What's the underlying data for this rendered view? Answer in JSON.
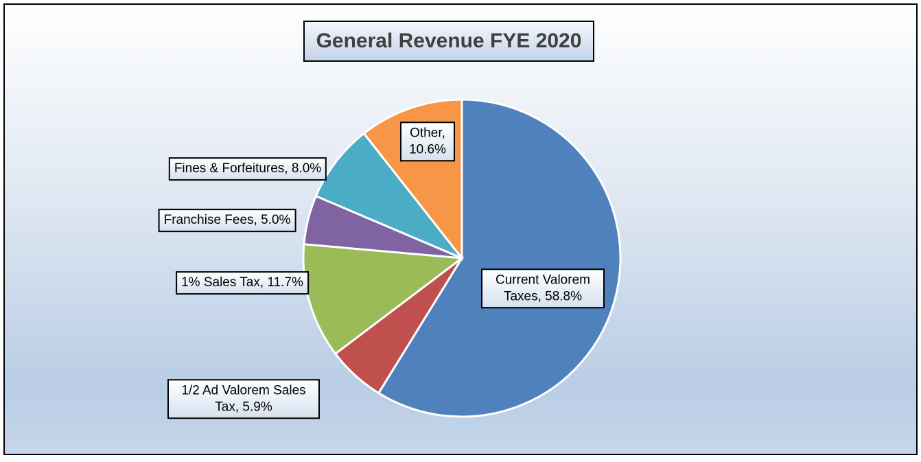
{
  "chart_data": {
    "type": "pie",
    "title": "General Revenue FYE 2020",
    "categories": [
      "Current Valorem Taxes",
      "1/2 Ad Valorem Sales Tax",
      "1% Sales Tax",
      "Franchise Fees",
      "Fines & Forfeitures",
      "Other"
    ],
    "values": [
      58.8,
      5.9,
      11.7,
      5.0,
      8.0,
      10.6
    ],
    "value_labels": [
      "Current Valorem Taxes, 58.8%",
      "1/2 Ad Valorem Sales Tax, 5.9%",
      "1% Sales Tax, 11.7%",
      "Franchise Fees, 5.0%",
      "Fines & Forfeitures, 8.0%",
      "Other, 10.6%"
    ],
    "colors": [
      "#4f81bd",
      "#c0504d",
      "#9bbb59",
      "#8064a2",
      "#4bacc6",
      "#f79646"
    ]
  }
}
